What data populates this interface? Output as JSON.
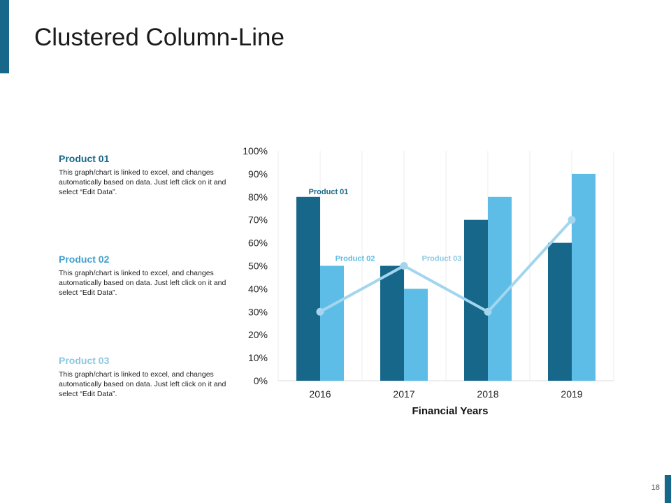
{
  "slide": {
    "title": "Clustered Column-Line",
    "page_number": "18"
  },
  "descriptions": [
    {
      "heading": "Product 01",
      "text": "This graph/chart is linked to excel, and changes automatically based on data. Just left click on it and select “Edit Data”.",
      "color": "#17678a"
    },
    {
      "heading": "Product 02",
      "text": "This graph/chart is linked to excel, and changes automatically based on data. Just left click on it and select “Edit Data”.",
      "color": "#3fa0cf"
    },
    {
      "heading": "Product 03",
      "text": "This graph/chart is linked to excel, and changes automatically based on data. Just left click on it and select “Edit Data”.",
      "color": "#8cc8e3"
    }
  ],
  "chart_data": {
    "type": "bar",
    "title": "",
    "xlabel": "Financial Years",
    "ylabel": "",
    "categories": [
      "2016",
      "2017",
      "2018",
      "2019"
    ],
    "ylim": [
      0,
      100
    ],
    "yticks": [
      "0%",
      "10%",
      "20%",
      "30%",
      "40%",
      "50%",
      "60%",
      "70%",
      "80%",
      "90%",
      "100%"
    ],
    "grid": "vertical",
    "series": [
      {
        "name": "Product 01",
        "kind": "bar",
        "values": [
          80,
          50,
          70,
          60
        ],
        "color": "#17678a"
      },
      {
        "name": "Product 02",
        "kind": "bar",
        "values": [
          50,
          40,
          80,
          90
        ],
        "color": "#5dbde6"
      },
      {
        "name": "Product 03",
        "kind": "line",
        "values": [
          30,
          50,
          30,
          70
        ],
        "color": "#a3d6ee"
      }
    ],
    "annotations": [
      "Product 01",
      "Product 02",
      "Product 03"
    ]
  }
}
